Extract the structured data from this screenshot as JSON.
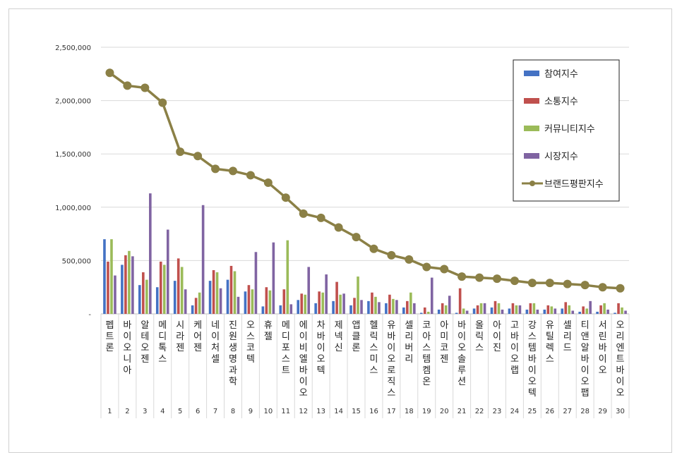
{
  "chart_data": {
    "type": "bar",
    "ylim": [
      0,
      2500000
    ],
    "yticks": [
      "-",
      "500,000",
      "1,000,000",
      "1,500,000",
      "2,000,000",
      "2,500,000"
    ],
    "grid": true,
    "legend_position": "top-right",
    "categories": [
      "펩트론",
      "바이오니아",
      "알테오젠",
      "메디톡스",
      "시라젠",
      "케어젠",
      "네이처셀",
      "진원생명과학",
      "오스코텍",
      "휴젤",
      "메디포스트",
      "에이비엘바이오",
      "차바이오텍",
      "제넥신",
      "앱클론",
      "헬릭스미스",
      "유바이오로직스",
      "셀리버리",
      "코아스템켐온",
      "아미코젠",
      "바이오솔루션",
      "올릭스",
      "아이진",
      "고바이오랩",
      "강스템바이오텍",
      "유틸렉스",
      "셀리드",
      "티앤알바이오팹",
      "서린바이오",
      "오리엔트바이오"
    ],
    "ranks": [
      "1",
      "2",
      "3",
      "4",
      "5",
      "6",
      "7",
      "8",
      "9",
      "10",
      "11",
      "12",
      "13",
      "14",
      "15",
      "16",
      "17",
      "18",
      "19",
      "20",
      "21",
      "22",
      "23",
      "24",
      "25",
      "26",
      "27",
      "28",
      "29",
      "30"
    ],
    "series": [
      {
        "name": "참여지수",
        "type": "bar",
        "color": "#4472C4",
        "values": [
          700000,
          460000,
          270000,
          250000,
          310000,
          80000,
          310000,
          320000,
          210000,
          70000,
          80000,
          130000,
          100000,
          120000,
          80000,
          120000,
          100000,
          60000,
          10000,
          40000,
          10000,
          50000,
          60000,
          50000,
          40000,
          40000,
          50000,
          20000,
          20000,
          10000
        ]
      },
      {
        "name": "소통지수",
        "type": "bar",
        "color": "#C0504D",
        "values": [
          490000,
          550000,
          390000,
          490000,
          520000,
          150000,
          410000,
          450000,
          270000,
          250000,
          230000,
          190000,
          210000,
          300000,
          150000,
          200000,
          180000,
          120000,
          60000,
          100000,
          240000,
          80000,
          120000,
          100000,
          100000,
          80000,
          110000,
          70000,
          80000,
          100000
        ]
      },
      {
        "name": "커뮤니티지수",
        "type": "bar",
        "color": "#9BBB59",
        "values": [
          700000,
          590000,
          320000,
          460000,
          440000,
          200000,
          390000,
          400000,
          230000,
          220000,
          690000,
          180000,
          200000,
          180000,
          350000,
          160000,
          140000,
          200000,
          20000,
          80000,
          50000,
          100000,
          100000,
          80000,
          100000,
          70000,
          80000,
          50000,
          100000,
          60000
        ]
      },
      {
        "name": "시장지수",
        "type": "bar",
        "color": "#8064A2",
        "values": [
          360000,
          540000,
          1130000,
          790000,
          230000,
          1020000,
          240000,
          160000,
          580000,
          670000,
          90000,
          440000,
          370000,
          190000,
          130000,
          110000,
          130000,
          100000,
          340000,
          170000,
          30000,
          100000,
          40000,
          80000,
          40000,
          50000,
          30000,
          120000,
          40000,
          30000
        ]
      },
      {
        "name": "브랜드평판지수",
        "type": "line",
        "color": "#8B8046",
        "values": [
          2260000,
          2140000,
          2120000,
          1980000,
          1520000,
          1480000,
          1360000,
          1340000,
          1300000,
          1230000,
          1090000,
          940000,
          900000,
          810000,
          720000,
          610000,
          550000,
          510000,
          440000,
          420000,
          350000,
          340000,
          330000,
          310000,
          290000,
          290000,
          280000,
          270000,
          250000,
          240000
        ]
      }
    ]
  }
}
